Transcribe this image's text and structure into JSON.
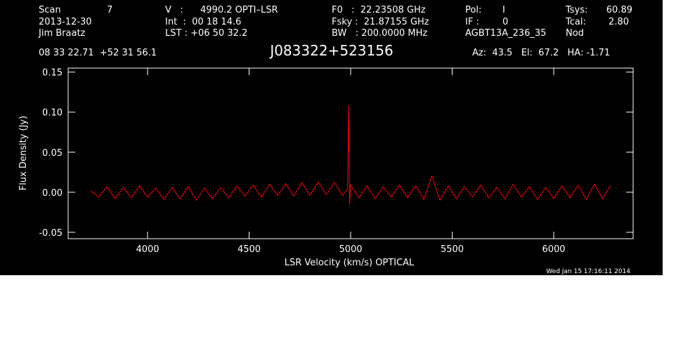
{
  "header": {
    "scan_label": "Scan",
    "scan": "7",
    "date": "2013-12-30",
    "observer": "Jim Braatz",
    "v_label": "V   :",
    "v": "4990.2 OPTI–LSR",
    "int": "Int  :  00 18 14.6",
    "lst": "LST : +06 50 32.2",
    "f0": "F0   :  22.23508 GHz",
    "fsky": "Fsky :  21.87155 GHz",
    "bw": "BW   : 200.0000 MHz",
    "pol_label": "Pol:",
    "pol": "I",
    "if_label": "IF :",
    "if": "0",
    "project": "AGBT13A_236_35",
    "tsys_label": "Tsys:",
    "tsys": "60.89",
    "tcal_label": "Tcal:",
    "tcal": "2.80",
    "proc": "Nod",
    "coords": "08 33 22.71  +52 31 56.1",
    "pointing": "Az:  43.5   El:  67.2   HA: -1.71",
    "timestamp": "Wed Jan 15 17:16:11 2014"
  },
  "chart_data": {
    "type": "line",
    "title": "J083322+523156",
    "x_label": "LSR Velocity (km/s) OPTICAL",
    "y_label": "Flux Density (Jy)",
    "color": "#ff0000",
    "x": [
      3720,
      3760,
      3800,
      3840,
      3880,
      3920,
      3960,
      4000,
      4040,
      4080,
      4120,
      4160,
      4200,
      4240,
      4280,
      4320,
      4360,
      4400,
      4440,
      4480,
      4520,
      4560,
      4600,
      4640,
      4680,
      4720,
      4760,
      4800,
      4840,
      4880,
      4920,
      4960,
      4985,
      4990,
      4995,
      5000,
      5040,
      5080,
      5120,
      5160,
      5200,
      5240,
      5280,
      5320,
      5360,
      5400,
      5440,
      5480,
      5520,
      5560,
      5600,
      5640,
      5680,
      5720,
      5760,
      5800,
      5840,
      5880,
      5920,
      5960,
      6000,
      6040,
      6080,
      6120,
      6160,
      6200,
      6240,
      6280
    ],
    "values": [
      0.002,
      -0.006,
      0.007,
      -0.008,
      0.006,
      -0.007,
      0.008,
      -0.006,
      0.005,
      -0.009,
      0.006,
      -0.008,
      0.007,
      -0.01,
      0.005,
      -0.008,
      0.006,
      -0.007,
      0.008,
      -0.005,
      0.009,
      -0.006,
      0.01,
      -0.004,
      0.011,
      -0.005,
      0.012,
      -0.004,
      0.013,
      -0.003,
      0.012,
      -0.004,
      0.004,
      0.108,
      -0.015,
      0.009,
      -0.007,
      0.008,
      -0.008,
      0.007,
      -0.006,
      0.009,
      -0.007,
      0.008,
      -0.009,
      0.02,
      -0.01,
      0.008,
      -0.008,
      0.007,
      -0.006,
      0.009,
      -0.007,
      0.006,
      -0.008,
      0.01,
      -0.006,
      0.007,
      -0.009,
      0.006,
      -0.008,
      0.008,
      -0.007,
      0.009,
      -0.009,
      0.01,
      -0.008,
      0.009
    ],
    "xlim": [
      3609,
      6391
    ],
    "xticks": [
      4000,
      4500,
      5000,
      5500,
      6000
    ],
    "ylim": [
      -0.058,
      0.155
    ],
    "yticks": [
      -0.05,
      {
        "value": 0,
        "label": "0.00"
      },
      0.05,
      {
        "value": 0.1,
        "label": "0.10"
      },
      0.15
    ]
  }
}
